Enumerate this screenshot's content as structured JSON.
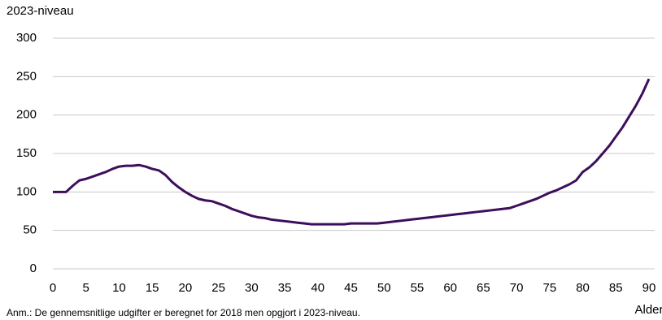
{
  "chart_data": {
    "type": "line",
    "y_label": "2023-niveau",
    "x_label": "Alder",
    "note": "Anm.: De gennemsnitlige udgifter er beregnet for 2018 men opgjort i 2023-niveau.",
    "x": [
      0,
      1,
      2,
      3,
      4,
      5,
      6,
      7,
      8,
      9,
      10,
      11,
      12,
      13,
      14,
      15,
      16,
      17,
      18,
      19,
      20,
      21,
      22,
      23,
      24,
      25,
      26,
      27,
      28,
      29,
      30,
      31,
      32,
      33,
      34,
      35,
      36,
      37,
      38,
      39,
      40,
      41,
      42,
      43,
      44,
      45,
      46,
      47,
      48,
      49,
      50,
      51,
      52,
      53,
      54,
      55,
      56,
      57,
      58,
      59,
      60,
      61,
      62,
      63,
      64,
      65,
      66,
      67,
      68,
      69,
      70,
      71,
      72,
      73,
      74,
      75,
      76,
      77,
      78,
      79,
      80,
      81,
      82,
      83,
      84,
      85,
      86,
      87,
      88,
      89,
      90
    ],
    "series": [
      {
        "color": "#3d0e5c",
        "values": [
          100,
          100,
          100,
          108,
          115,
          117,
          120,
          123,
          126,
          130,
          133,
          134,
          134,
          135,
          133,
          130,
          128,
          122,
          113,
          106,
          100,
          95,
          91,
          89,
          88,
          85,
          82,
          78,
          75,
          72,
          69,
          67,
          66,
          64,
          63,
          62,
          61,
          60,
          59,
          58,
          58,
          58,
          58,
          58,
          58,
          59,
          59,
          59,
          59,
          59,
          60,
          61,
          62,
          63,
          64,
          65,
          66,
          67,
          68,
          69,
          70,
          71,
          72,
          73,
          74,
          75,
          76,
          77,
          78,
          79,
          82,
          85,
          88,
          91,
          95,
          99,
          102,
          106,
          110,
          115,
          126,
          132,
          140,
          150,
          160,
          172,
          184,
          198,
          212,
          228,
          247
        ]
      }
    ],
    "xlim": [
      0,
      90
    ],
    "xticks": [
      0,
      5,
      10,
      15,
      20,
      25,
      30,
      35,
      40,
      45,
      50,
      55,
      60,
      65,
      70,
      75,
      80,
      85,
      90
    ],
    "ylim": [
      0,
      300
    ],
    "yticks": [
      0,
      50,
      100,
      150,
      200,
      250,
      300
    ],
    "grid": true
  }
}
